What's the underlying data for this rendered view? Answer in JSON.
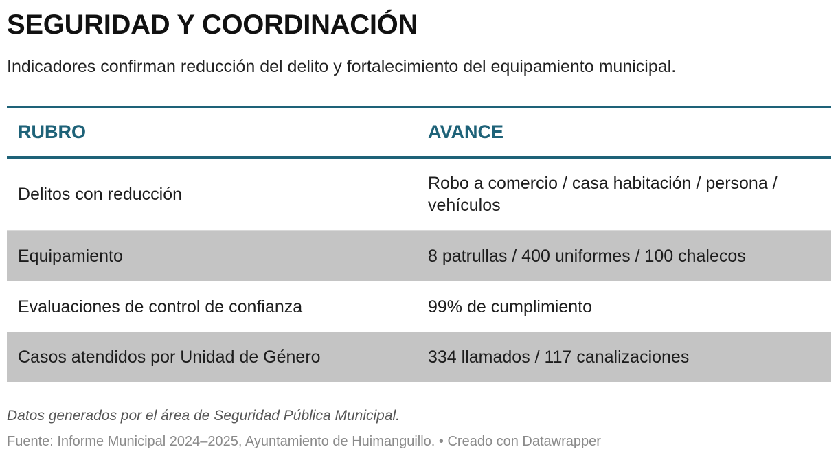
{
  "chart_data": {
    "type": "table",
    "title": "SEGURIDAD Y COORDINACIÓN",
    "subtitle": "Indicadores confirman reducción del delito y fortalecimiento del equipamiento municipal.",
    "columns": [
      "RUBRO",
      "AVANCE"
    ],
    "rows": [
      {
        "rubro": "Delitos con reducción",
        "avance": "Robo a comercio / casa habitación / persona / vehículos",
        "shaded": false
      },
      {
        "rubro": "Equipamiento",
        "avance": "8 patrullas / 400 uniformes / 100 chalecos",
        "shaded": true
      },
      {
        "rubro": "Evaluaciones de control de confianza",
        "avance": "99% de cumplimiento",
        "shaded": false
      },
      {
        "rubro": "Casos atendidos por Unidad de Género",
        "avance": "334 llamados / 117 canalizaciones",
        "shaded": true
      }
    ],
    "notes": "Datos generados por el área de Seguridad Pública Municipal.",
    "source": "Fuente: Informe Municipal 2024–2025, Ayuntamiento de Huimanguillo. • Creado con Datawrapper"
  },
  "colors": {
    "header_accent": "#1e6278",
    "shaded_row": "#c4c4c4",
    "text": "#1d1d1d"
  }
}
